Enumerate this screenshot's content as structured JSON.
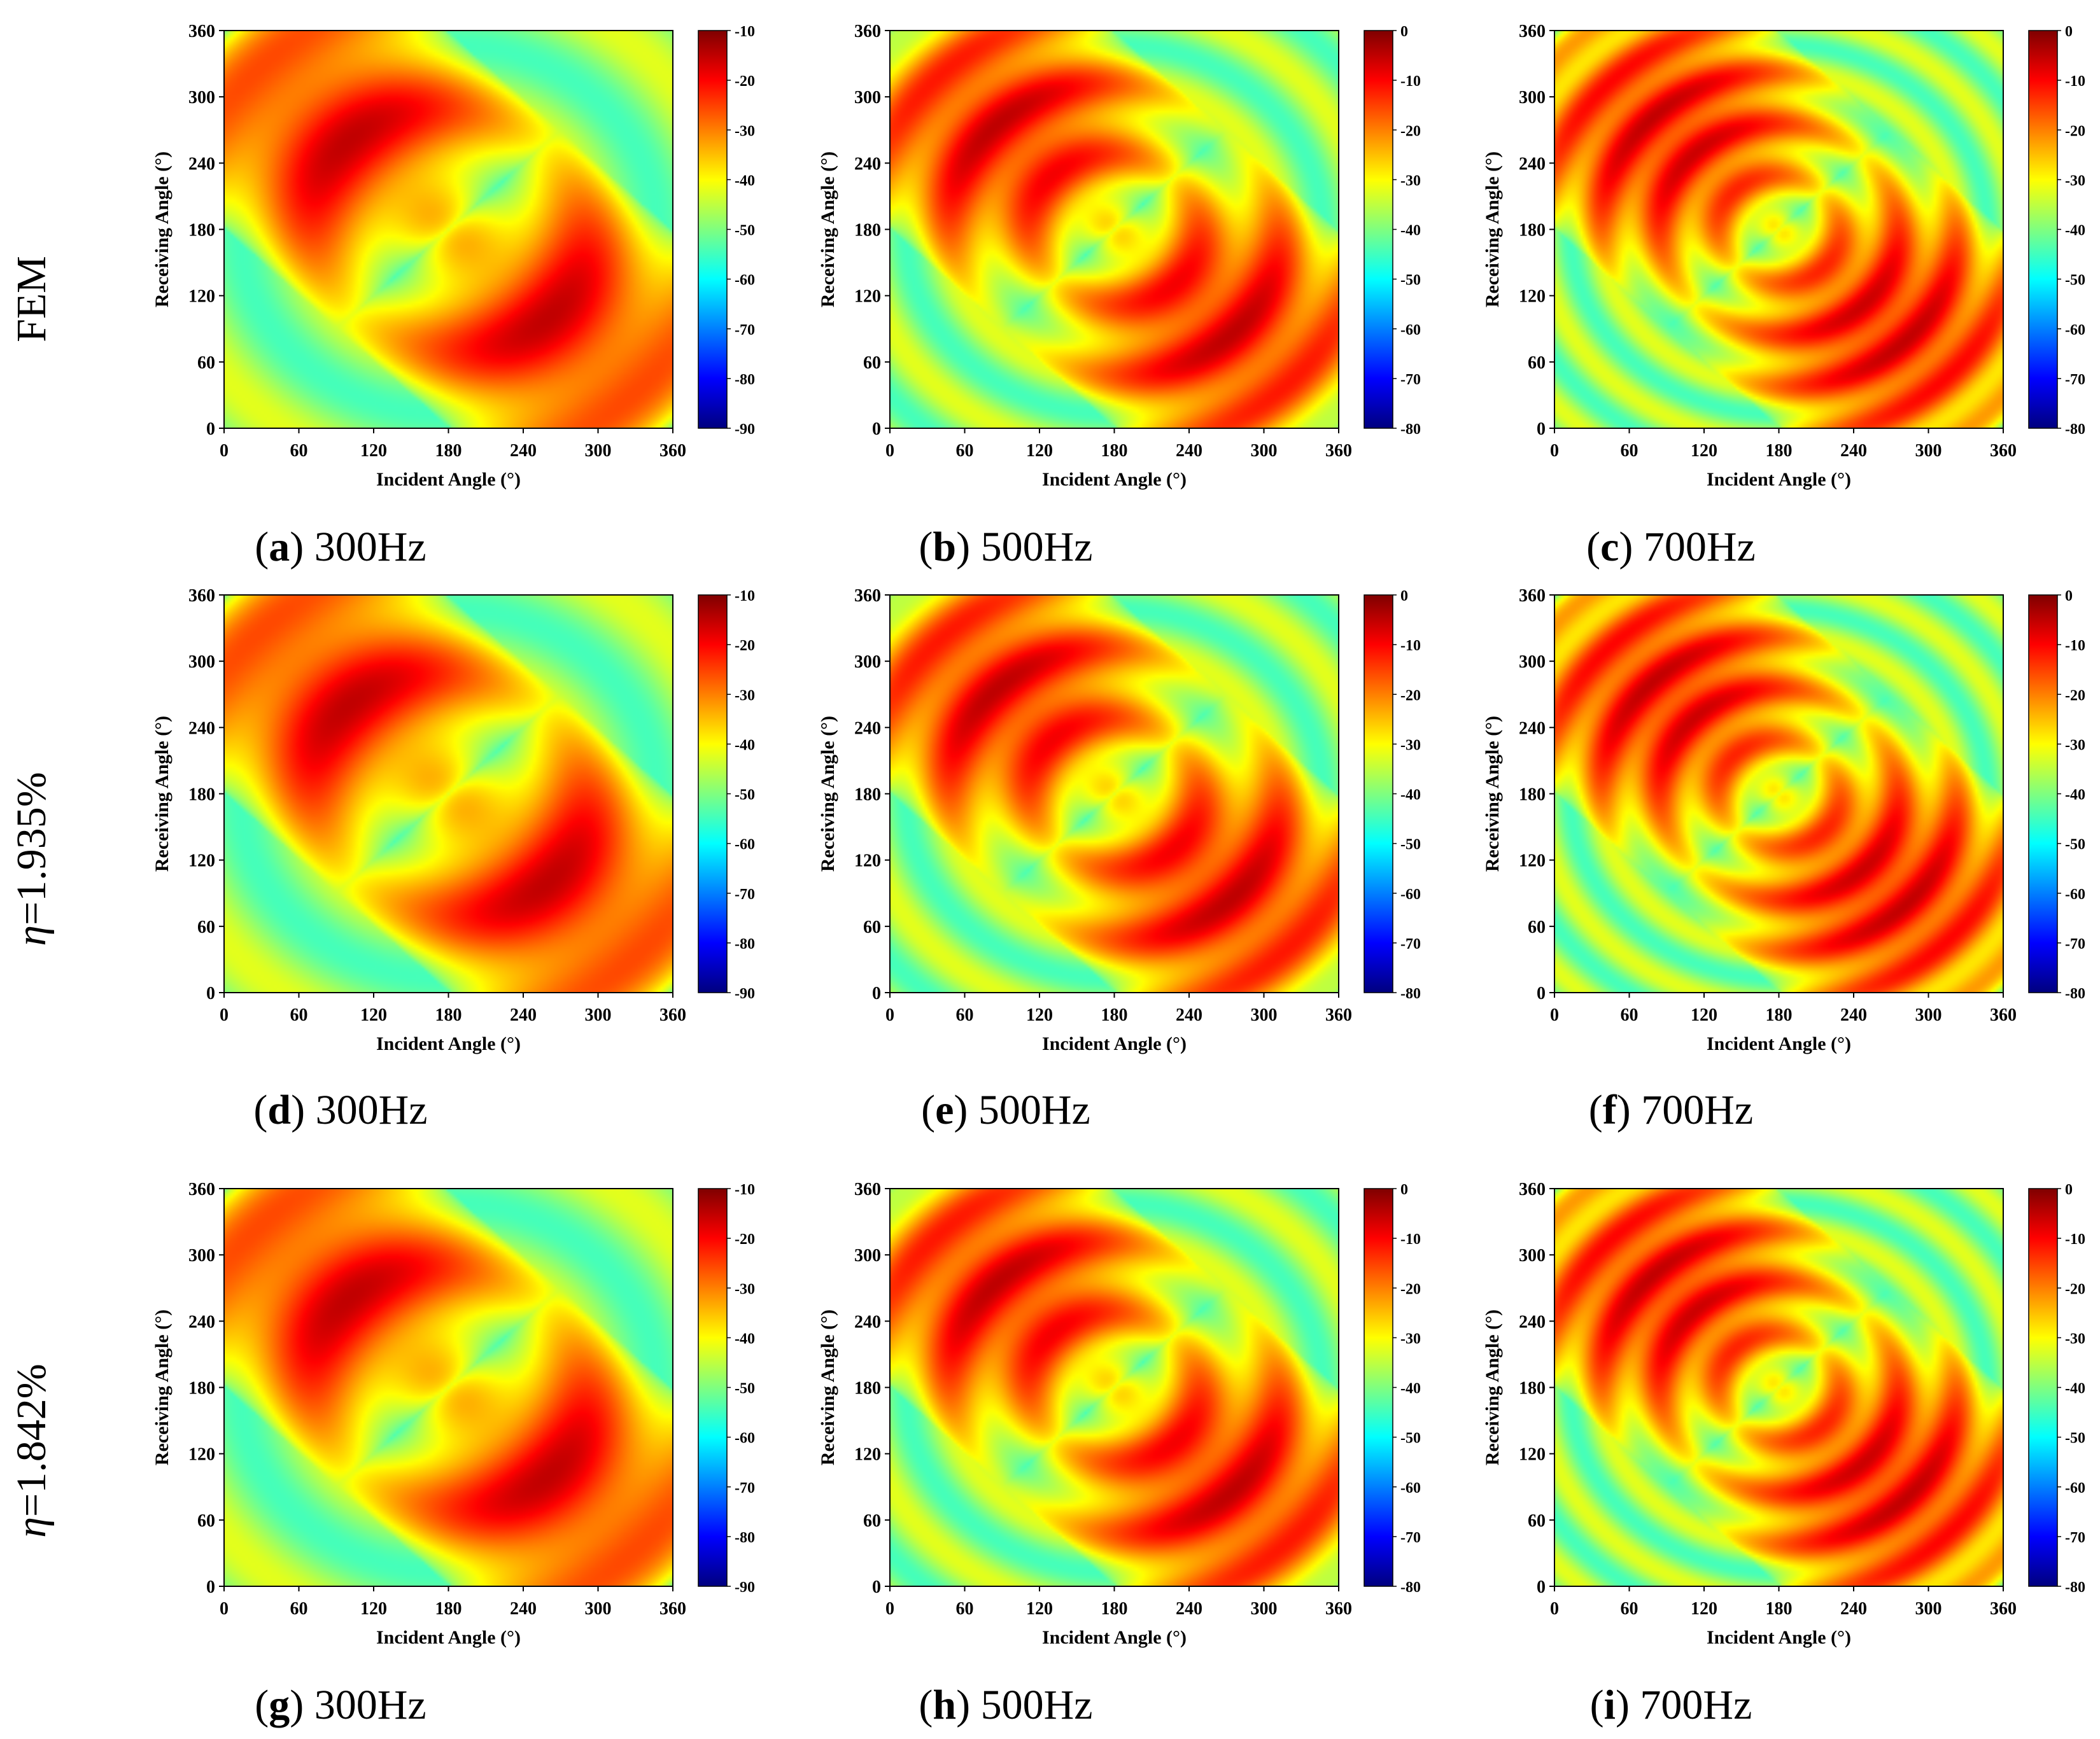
{
  "rows": [
    {
      "label": "FEM"
    },
    {
      "eta_symbol": "η",
      "eta_value": "=1.935%"
    },
    {
      "eta_symbol": "η",
      "eta_value": "=1.842%"
    }
  ],
  "colors": {
    "colormap": [
      "#00007f",
      "#0000ff",
      "#007fff",
      "#00ffff",
      "#7fff7f",
      "#ffff00",
      "#ff7f00",
      "#ff0000",
      "#7f0000"
    ]
  },
  "chart_data": [
    {
      "id": "a",
      "type": "heatmap",
      "freq_hz": 300,
      "caption_letter": "a",
      "caption_text": " 300Hz",
      "xlabel": "Incident Angle (°)",
      "ylabel": "Receiving Angle (°)",
      "xlim": [
        0,
        360
      ],
      "ylim": [
        0,
        360
      ],
      "xticks": [
        "0",
        "60",
        "120",
        "180",
        "240",
        "300",
        "360"
      ],
      "yticks": [
        "0",
        "60",
        "120",
        "180",
        "240",
        "300",
        "360"
      ],
      "colorbar": {
        "range": [
          -90,
          -10
        ],
        "ticks": [
          "-10",
          "-20",
          "-30",
          "-40",
          "-50",
          "-60",
          "-70",
          "-80",
          "-90"
        ]
      }
    },
    {
      "id": "b",
      "type": "heatmap",
      "freq_hz": 500,
      "caption_letter": "b",
      "caption_text": " 500Hz",
      "xlabel": "Incident Angle (°)",
      "ylabel": "Receiving Angle (°)",
      "xlim": [
        0,
        360
      ],
      "ylim": [
        0,
        360
      ],
      "xticks": [
        "0",
        "60",
        "120",
        "180",
        "240",
        "300",
        "360"
      ],
      "yticks": [
        "0",
        "60",
        "120",
        "180",
        "240",
        "300",
        "360"
      ],
      "colorbar": {
        "range": [
          -80,
          0
        ],
        "ticks": [
          "0",
          "-10",
          "-20",
          "-30",
          "-40",
          "-50",
          "-60",
          "-70",
          "-80"
        ]
      }
    },
    {
      "id": "c",
      "type": "heatmap",
      "freq_hz": 700,
      "caption_letter": "c",
      "caption_text": " 700Hz",
      "xlabel": "Incident Angle (°)",
      "ylabel": "Receiving Angle (°)",
      "xlim": [
        0,
        360
      ],
      "ylim": [
        0,
        360
      ],
      "xticks": [
        "0",
        "60",
        "120",
        "180",
        "240",
        "300",
        "360"
      ],
      "yticks": [
        "0",
        "60",
        "120",
        "180",
        "240",
        "300",
        "360"
      ],
      "colorbar": {
        "range": [
          -80,
          0
        ],
        "ticks": [
          "0",
          "-10",
          "-20",
          "-30",
          "-40",
          "-50",
          "-60",
          "-70",
          "-80"
        ]
      }
    },
    {
      "id": "d",
      "type": "heatmap",
      "freq_hz": 300,
      "caption_letter": "d",
      "caption_text": " 300Hz",
      "xlabel": "Incident Angle (°)",
      "ylabel": "Receiving Angle (°)",
      "xlim": [
        0,
        360
      ],
      "ylim": [
        0,
        360
      ],
      "xticks": [
        "0",
        "60",
        "120",
        "180",
        "240",
        "300",
        "360"
      ],
      "yticks": [
        "0",
        "60",
        "120",
        "180",
        "240",
        "300",
        "360"
      ],
      "colorbar": {
        "range": [
          -90,
          -10
        ],
        "ticks": [
          "-10",
          "-20",
          "-30",
          "-40",
          "-50",
          "-60",
          "-70",
          "-80",
          "-90"
        ]
      }
    },
    {
      "id": "e",
      "type": "heatmap",
      "freq_hz": 500,
      "caption_letter": "e",
      "caption_text": " 500Hz",
      "xlabel": "Incident Angle (°)",
      "ylabel": "Receiving Angle (°)",
      "xlim": [
        0,
        360
      ],
      "ylim": [
        0,
        360
      ],
      "xticks": [
        "0",
        "60",
        "120",
        "180",
        "240",
        "300",
        "360"
      ],
      "yticks": [
        "0",
        "60",
        "120",
        "180",
        "240",
        "300",
        "360"
      ],
      "colorbar": {
        "range": [
          -80,
          0
        ],
        "ticks": [
          "0",
          "-10",
          "-20",
          "-30",
          "-40",
          "-50",
          "-60",
          "-70",
          "-80"
        ]
      }
    },
    {
      "id": "f",
      "type": "heatmap",
      "freq_hz": 700,
      "caption_letter": "f",
      "caption_text": " 700Hz",
      "xlabel": "Incident Angle (°)",
      "ylabel": "Receiving Angle (°)",
      "xlim": [
        0,
        360
      ],
      "ylim": [
        0,
        360
      ],
      "xticks": [
        "0",
        "60",
        "120",
        "180",
        "240",
        "300",
        "360"
      ],
      "yticks": [
        "0",
        "60",
        "120",
        "180",
        "240",
        "300",
        "360"
      ],
      "colorbar": {
        "range": [
          -80,
          0
        ],
        "ticks": [
          "0",
          "-10",
          "-20",
          "-30",
          "-40",
          "-50",
          "-60",
          "-70",
          "-80"
        ]
      }
    },
    {
      "id": "g",
      "type": "heatmap",
      "freq_hz": 300,
      "caption_letter": "g",
      "caption_text": " 300Hz",
      "xlabel": "Incident Angle (°)",
      "ylabel": "Receiving Angle (°)",
      "xlim": [
        0,
        360
      ],
      "ylim": [
        0,
        360
      ],
      "xticks": [
        "0",
        "60",
        "120",
        "180",
        "240",
        "300",
        "360"
      ],
      "yticks": [
        "0",
        "60",
        "120",
        "180",
        "240",
        "300",
        "360"
      ],
      "colorbar": {
        "range": [
          -90,
          -10
        ],
        "ticks": [
          "-10",
          "-20",
          "-30",
          "-40",
          "-50",
          "-60",
          "-70",
          "-80",
          "-90"
        ]
      }
    },
    {
      "id": "h",
      "type": "heatmap",
      "freq_hz": 500,
      "caption_letter": "h",
      "caption_text": " 500Hz",
      "xlabel": "Incident Angle (°)",
      "ylabel": "Receiving Angle (°)",
      "xlim": [
        0,
        360
      ],
      "ylim": [
        0,
        360
      ],
      "xticks": [
        "0",
        "60",
        "120",
        "180",
        "240",
        "300",
        "360"
      ],
      "yticks": [
        "0",
        "60",
        "120",
        "180",
        "240",
        "300",
        "360"
      ],
      "colorbar": {
        "range": [
          -80,
          0
        ],
        "ticks": [
          "0",
          "-10",
          "-20",
          "-30",
          "-40",
          "-50",
          "-60",
          "-70",
          "-80"
        ]
      }
    },
    {
      "id": "i",
      "type": "heatmap",
      "freq_hz": 700,
      "caption_letter": "i",
      "caption_text": " 700Hz",
      "xlabel": "Incident Angle (°)",
      "ylabel": "Receiving Angle (°)",
      "xlim": [
        0,
        360
      ],
      "ylim": [
        0,
        360
      ],
      "xticks": [
        "0",
        "60",
        "120",
        "180",
        "240",
        "300",
        "360"
      ],
      "yticks": [
        "0",
        "60",
        "120",
        "180",
        "240",
        "300",
        "360"
      ],
      "colorbar": {
        "range": [
          -80,
          0
        ],
        "ticks": [
          "0",
          "-10",
          "-20",
          "-30",
          "-40",
          "-50",
          "-60",
          "-70",
          "-80"
        ]
      }
    }
  ]
}
